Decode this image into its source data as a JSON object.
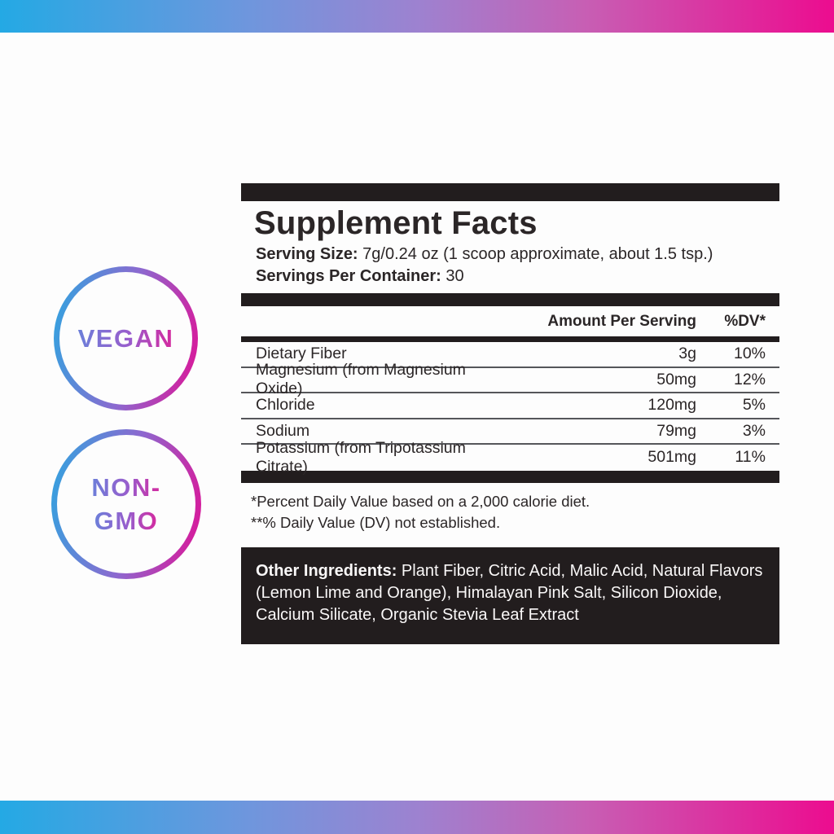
{
  "colors": {
    "gradient_blue": "#24a9e4",
    "gradient_purple": "#9d82d0",
    "gradient_magenta": "#ec0c8f",
    "panel_black": "#221d1e",
    "text_dark": "#2b2627",
    "page_background": "#fdfdfd"
  },
  "badges": {
    "vegan": {
      "label": "VEGAN"
    },
    "non_gmo": {
      "line1": "NON-",
      "line2": "GMO"
    }
  },
  "panel": {
    "title": "Supplement Facts",
    "serving_size_label": "Serving Size:",
    "serving_size_value": "7g/0.24 oz (1 scoop approximate, about 1.5 tsp.)",
    "servings_per_container_label": "Servings Per Container:",
    "servings_per_container_value": "30",
    "columns": {
      "amount": "Amount Per Serving",
      "dv": "%DV*"
    },
    "rows": [
      {
        "name": "Dietary Fiber",
        "amount": "3g",
        "dv": "10%"
      },
      {
        "name": "Magnesium (from Magnesium Oxide)",
        "amount": "50mg",
        "dv": "12%"
      },
      {
        "name": "Chloride",
        "amount": "120mg",
        "dv": "5%"
      },
      {
        "name": "Sodium",
        "amount": "79mg",
        "dv": "3%"
      },
      {
        "name": "Potassium (from Tripotassium Citrate)",
        "amount": "501mg",
        "dv": "11%"
      }
    ],
    "footnotes": [
      "*Percent Daily Value based on a 2,000 calorie diet.",
      "**% Daily Value (DV) not established."
    ],
    "other_ingredients_label": "Other Ingredients:",
    "other_ingredients_value": "Plant Fiber, Citric Acid, Malic Acid, Natural Flavors (Lemon Lime and Orange), Himalayan Pink Salt, Silicon Dioxide, Calcium Silicate, Organic Stevia Leaf Extract"
  }
}
